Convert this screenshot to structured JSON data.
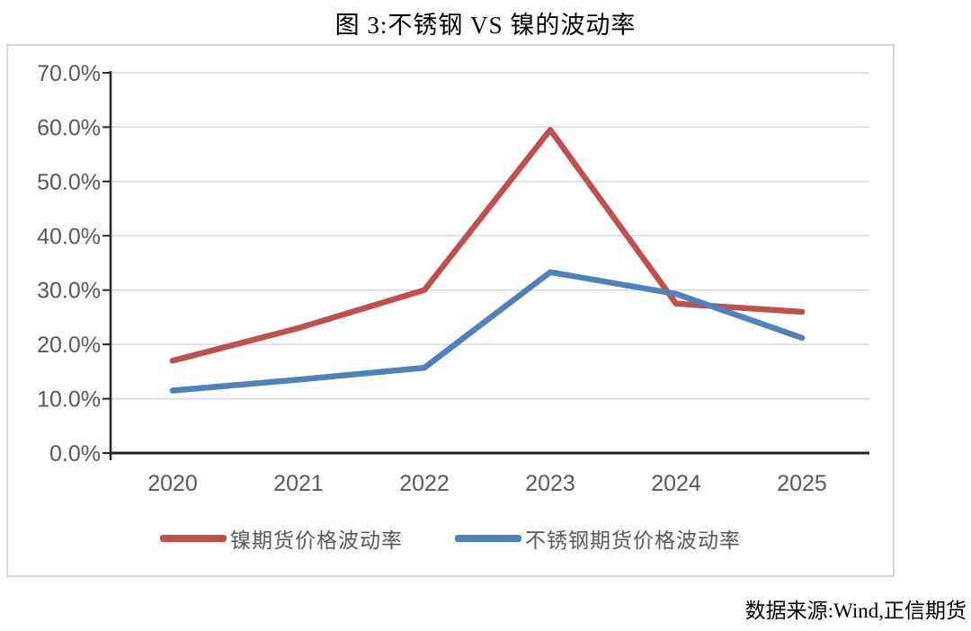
{
  "figure": {
    "title": "图 3:不锈钢 VS 镍的波动率"
  },
  "source": {
    "text": "数据来源:Wind,正信期货"
  },
  "chart_data": {
    "type": "line",
    "title": "图 3:不锈钢 VS 镍的波动率",
    "categories": [
      "2020",
      "2021",
      "2022",
      "2023",
      "2024",
      "2025"
    ],
    "series": [
      {
        "name": "镍期货价格波动率",
        "color": "#c0504d",
        "values": [
          17.0,
          23.0,
          30.0,
          59.5,
          27.5,
          26.0
        ]
      },
      {
        "name": "不锈钢期货价格波动率",
        "color": "#4f81bd",
        "values": [
          11.5,
          13.5,
          15.7,
          33.3,
          29.3,
          21.2
        ]
      }
    ],
    "ylim": [
      0,
      70
    ],
    "ytick_step": 10,
    "ytick_labels": [
      "70.0%",
      "60.0%",
      "50.0%",
      "40.0%",
      "30.0%",
      "20.0%",
      "10.0%",
      "0.0%"
    ],
    "xlabel": "",
    "ylabel": "",
    "grid": "horizontal",
    "legend_position": "bottom",
    "colors": {
      "grid": "#d9d9d9",
      "axis": "#262626",
      "tick_label": "#595959"
    }
  }
}
